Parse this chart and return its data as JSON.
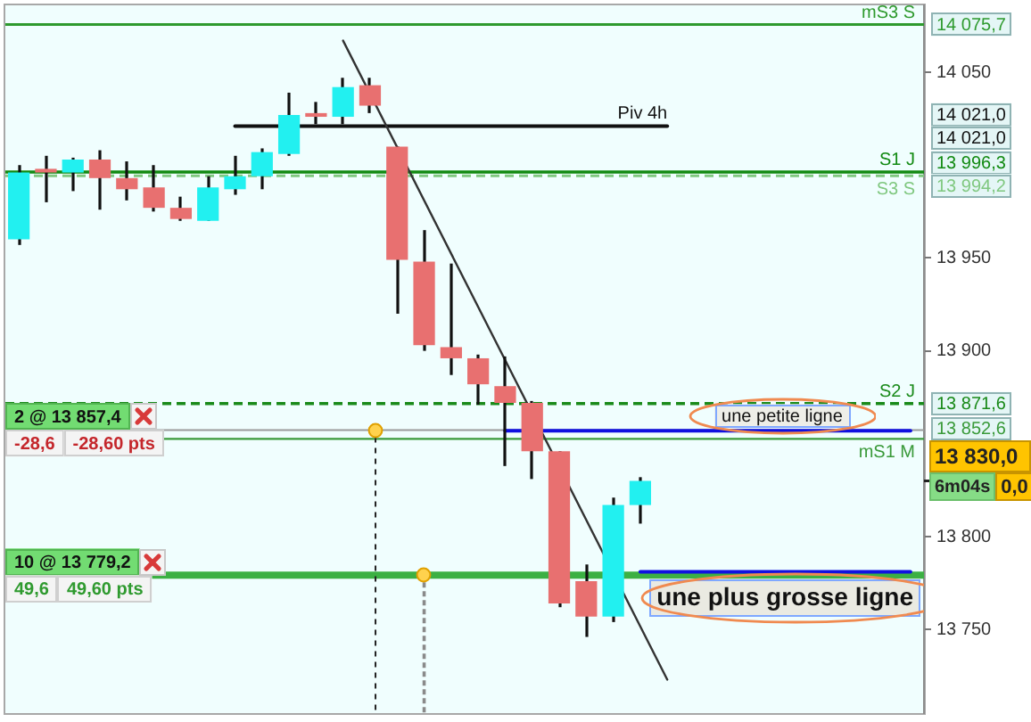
{
  "chart_data": {
    "type": "candlestick",
    "categories": [
      null,
      null,
      null,
      null,
      null,
      null,
      null,
      null,
      null,
      null,
      null,
      null,
      null,
      null,
      null,
      null,
      null,
      null,
      null,
      null,
      null,
      null,
      null,
      null,
      null,
      null,
      null,
      null,
      null,
      null,
      null,
      null,
      null,
      null
    ],
    "ohlc": [
      [
        13960,
        14000,
        13957,
        13996
      ],
      [
        13998,
        14005,
        13980,
        13996
      ],
      [
        13996,
        14004,
        13986,
        14003
      ],
      [
        14003,
        14008,
        13976,
        13993
      ],
      [
        13993,
        14002,
        13981,
        13987
      ],
      [
        13988,
        14000,
        13975,
        13977
      ],
      [
        13977,
        13983,
        13970,
        13971
      ],
      [
        13970,
        13994,
        13970,
        13988
      ],
      [
        13987,
        14005,
        13984,
        13994
      ],
      [
        13994,
        14009,
        13987,
        14007
      ],
      [
        14006,
        14039,
        14005,
        14027
      ],
      [
        14028,
        14034,
        14022,
        14026
      ],
      [
        14026,
        14047,
        14022,
        14042
      ],
      [
        14043,
        14047,
        14028,
        14032
      ],
      [
        14010,
        14010,
        13920,
        13949
      ],
      [
        13948,
        13965,
        13900,
        13903
      ],
      [
        13902,
        13947,
        13887,
        13896
      ],
      [
        13896,
        13898,
        13871,
        13882
      ],
      [
        13881,
        13897,
        13838,
        13872
      ],
      [
        13872,
        13873,
        13831,
        13846
      ],
      [
        13846,
        13846,
        13762,
        13764
      ],
      [
        13776,
        13785,
        13746,
        13757
      ],
      [
        13757,
        13821,
        13754,
        13817
      ],
      [
        13817,
        13832,
        13807,
        13830
      ],
      null,
      null,
      null,
      null,
      null,
      null,
      null,
      null,
      null,
      null
    ],
    "colors": [
      "#22f0f0",
      "#e87070",
      "#22f0f0",
      "#e87070",
      "#e87070",
      "#e87070",
      "#e87070",
      "#22f0f0",
      "#22f0f0",
      "#22f0f0",
      "#22f0f0",
      "#e87070",
      "#22f0f0",
      "#e87070",
      "#e87070",
      "#e87070",
      "#e87070",
      "#e87070",
      "#e87070",
      "#e87070",
      "#e87070",
      "#e87070",
      "#22f0f0",
      "#22f0f0",
      null,
      null,
      null,
      null,
      null,
      null,
      null,
      null,
      null,
      null
    ],
    "ylim": [
      13705,
      14086
    ],
    "yticks": [
      {
        "value": 14050,
        "label": "14 050"
      },
      {
        "value": 13950,
        "label": "13 950"
      },
      {
        "value": 13900,
        "label": "13 900"
      },
      {
        "value": 13800,
        "label": "13 800"
      },
      {
        "value": 13750,
        "label": "13 750"
      }
    ],
    "series": [
      {
        "type": "line",
        "color": "#333333",
        "values": [
          null,
          null,
          null,
          null,
          null,
          null,
          null,
          null,
          null,
          null,
          null,
          null,
          14067,
          null,
          null,
          null,
          null,
          null,
          null,
          null,
          null,
          null,
          null,
          null,
          13723,
          null,
          null,
          null,
          null,
          null,
          null,
          null,
          null,
          null
        ]
      },
      {
        "type": "line",
        "name": "Piv 4h",
        "color": "#111111",
        "values": [
          null,
          null,
          null,
          null,
          null,
          null,
          null,
          null,
          14021,
          14021,
          null,
          14021,
          14021,
          14021,
          14021,
          14021,
          14021,
          14021,
          14021,
          14021,
          14021,
          14021,
          14021,
          14021,
          14021,
          null,
          null,
          null,
          null,
          null,
          null,
          null,
          null,
          null
        ]
      },
      {
        "type": "line",
        "name": "une petite ligne",
        "color": "#1010e0",
        "values": [
          null,
          null,
          null,
          null,
          null,
          null,
          null,
          null,
          null,
          null,
          null,
          null,
          null,
          null,
          null,
          null,
          null,
          null,
          13857,
          null,
          13857,
          13857,
          13857,
          13857,
          13857,
          13857,
          13857,
          13857,
          13857,
          13857,
          13857,
          13857,
          13857,
          13857
        ]
      },
      {
        "type": "line",
        "name": "une plus grosse ligne",
        "color": "#1010e0",
        "values": [
          null,
          null,
          null,
          null,
          null,
          null,
          null,
          null,
          null,
          null,
          null,
          null,
          null,
          null,
          null,
          null,
          null,
          null,
          null,
          null,
          null,
          null,
          null,
          13781,
          13781,
          13781,
          13781,
          13781,
          13781,
          13781,
          13781,
          13781,
          13781,
          13781
        ]
      }
    ],
    "ref_lines": [
      {
        "axis": "y",
        "value": 14075.7,
        "label": "mS3 S",
        "color": "#2e9a2e"
      },
      {
        "axis": "y",
        "value": 13996.3,
        "label": "S1 J",
        "color": "#128a12"
      },
      {
        "axis": "y",
        "value": 13994.2,
        "label": "S3 S",
        "color": "#80c880",
        "line_style": "dashed"
      },
      {
        "axis": "y",
        "value": 13871.6,
        "label": "S2 J",
        "color": "#1a8a1a",
        "line_style": "dashed"
      },
      {
        "axis": "y",
        "value": 13852.6,
        "label": "mS1 M",
        "color": "#3a9a3a"
      },
      {
        "axis": "y",
        "value": 13857.4,
        "label": "2 @ 13 857,4",
        "color": "#9a9a9a"
      },
      {
        "axis": "y",
        "value": 13779.2,
        "label": "10 @ 13 779,2",
        "color": "#3cb043"
      }
    ],
    "annotations": [
      "14 075,7",
      "14 021,0",
      "14 021,0",
      "13 996,3",
      "13 994,2",
      "13 871,6",
      "13 852,6",
      "13 830,0",
      "-28,6",
      "-28,60 pts",
      "49,6",
      "49,60 pts",
      "6m04s",
      "0,0"
    ]
  }
}
